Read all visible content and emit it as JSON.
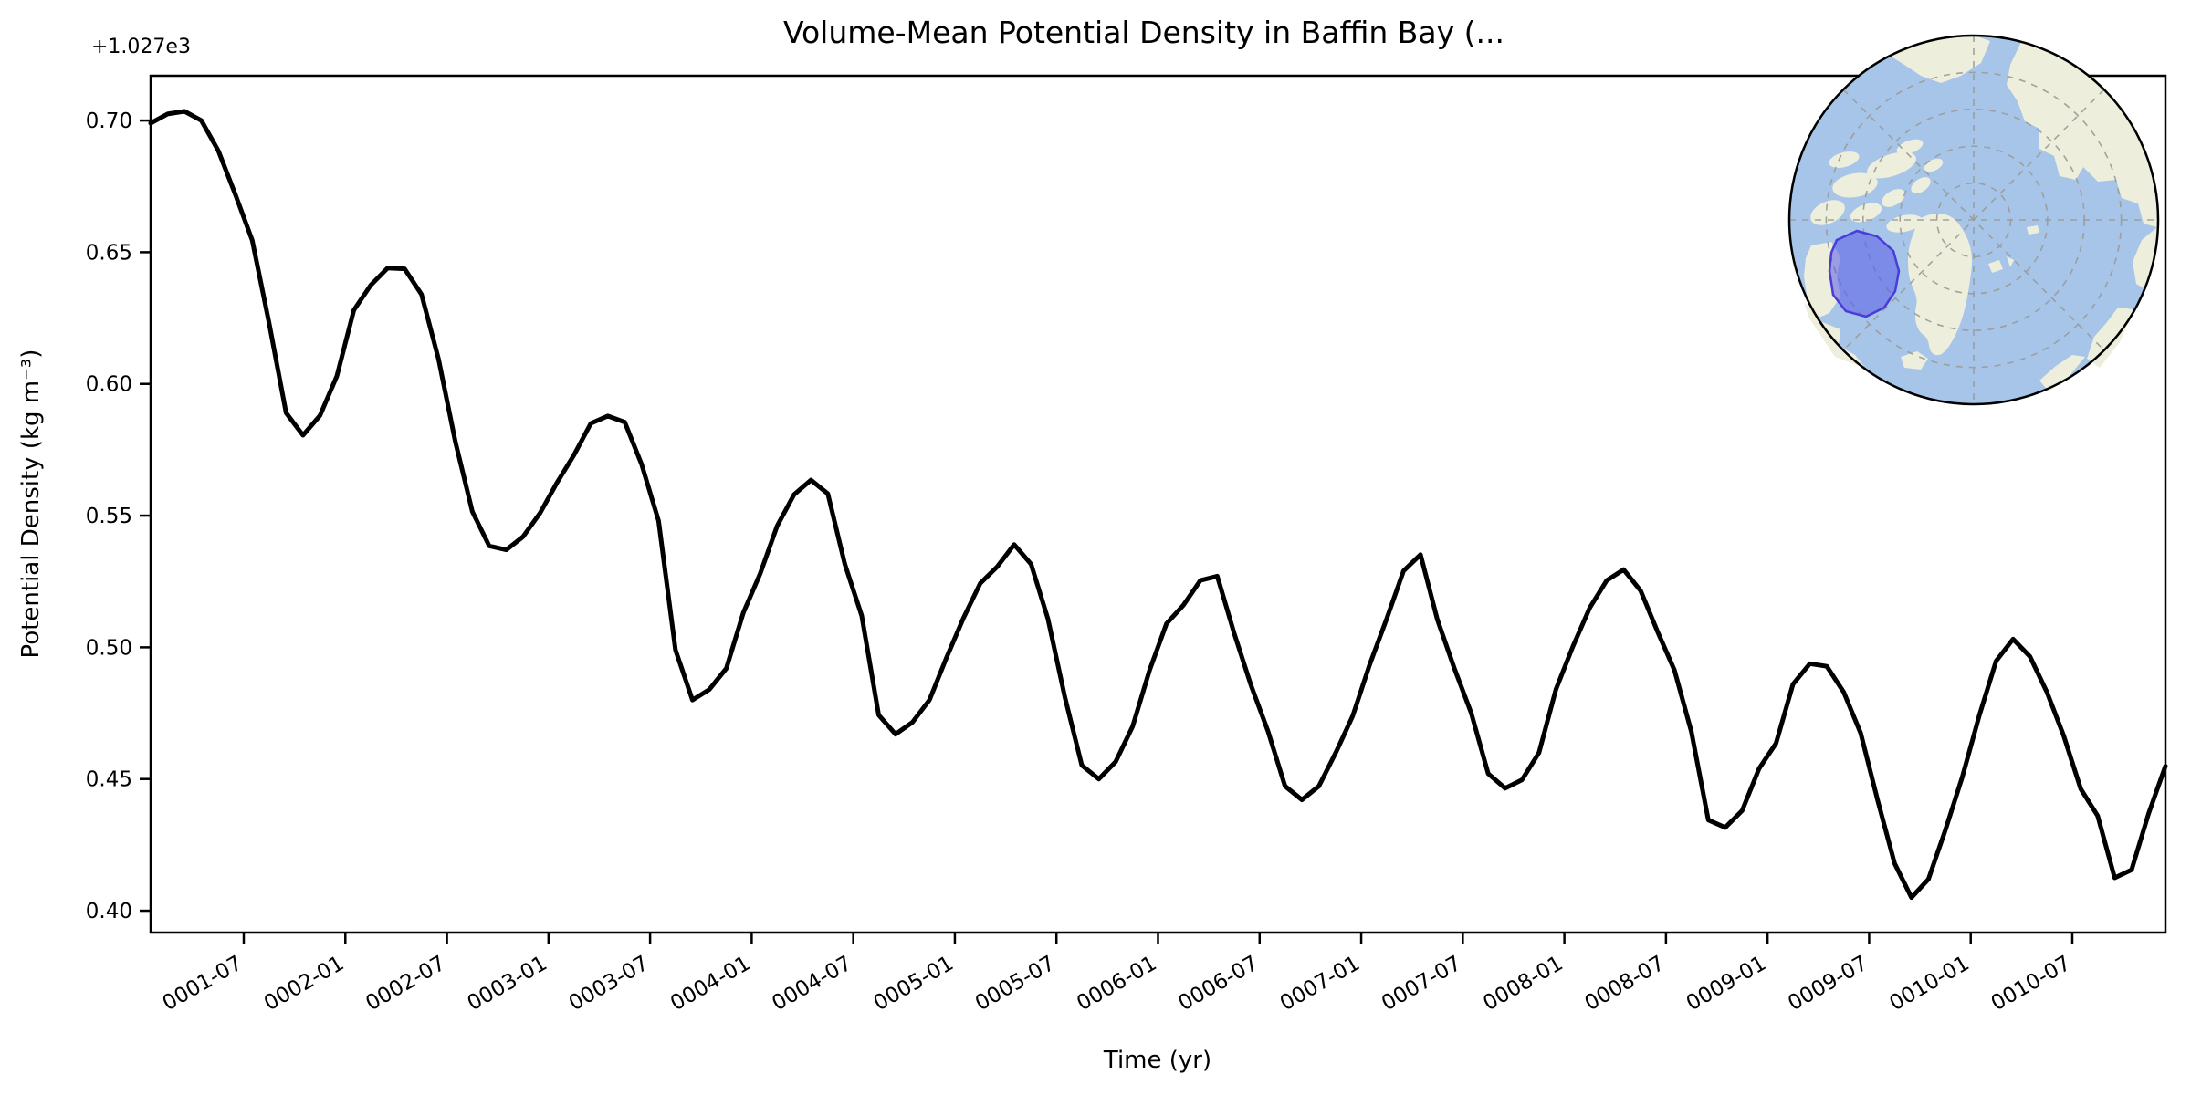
{
  "figure": {
    "title": "Volume-Mean Potential Density in Baffin Bay (...",
    "background_color": "#ffffff"
  },
  "chart_data": {
    "type": "line",
    "title": "Volume-Mean Potential Density in Baffin Bay (...",
    "xlabel": "Time (yr)",
    "ylabel": "Potential Density (kg m⁻³)",
    "y_axis_offset_label": "+1.027e3",
    "y_offset": 1027,
    "units": "kg m-3",
    "grid": false,
    "legend": "none",
    "line_color": "#000000",
    "line_width": 5,
    "ylim": [
      0.3917,
      0.717
    ],
    "y_ticks": [
      0.4,
      0.45,
      0.5,
      0.55,
      0.6,
      0.65,
      0.7
    ],
    "y_tick_labels": [
      "0.40",
      "0.45",
      "0.50",
      "0.55",
      "0.60",
      "0.65",
      "0.70"
    ],
    "x_tick_labels": [
      "0001-07",
      "0002-01",
      "0002-07",
      "0003-01",
      "0003-07",
      "0004-01",
      "0004-07",
      "0005-01",
      "0005-07",
      "0006-01",
      "0006-07",
      "0007-01",
      "0007-07",
      "0008-01",
      "0008-07",
      "0009-01",
      "0009-07",
      "0010-01",
      "0010-07"
    ],
    "x_start_month": "0001-01",
    "x_end_month": "0010-12",
    "frequency": "monthly",
    "values": [
      0.699,
      0.7025,
      0.7035,
      0.7,
      0.6885,
      0.672,
      0.6545,
      0.623,
      0.589,
      0.5805,
      0.588,
      0.603,
      0.628,
      0.6375,
      0.644,
      0.6437,
      0.634,
      0.6095,
      0.578,
      0.5515,
      0.5385,
      0.537,
      0.542,
      0.551,
      0.5625,
      0.573,
      0.585,
      0.5878,
      0.5855,
      0.5695,
      0.548,
      0.499,
      0.48,
      0.484,
      0.492,
      0.513,
      0.528,
      0.546,
      0.558,
      0.5635,
      0.5583,
      0.5316,
      0.512,
      0.4743,
      0.467,
      0.4716,
      0.48,
      0.496,
      0.511,
      0.5243,
      0.5306,
      0.539,
      0.5316,
      0.5108,
      0.481,
      0.4552,
      0.45,
      0.4566,
      0.47,
      0.4913,
      0.509,
      0.516,
      0.5254,
      0.527,
      0.5052,
      0.4854,
      0.468,
      0.4473,
      0.4421,
      0.4473,
      0.46,
      0.474,
      0.4934,
      0.5108,
      0.529,
      0.5352,
      0.5105,
      0.492,
      0.475,
      0.452,
      0.4465,
      0.4497,
      0.46,
      0.484,
      0.5003,
      0.515,
      0.5254,
      0.5295,
      0.5215,
      0.506,
      0.4913,
      0.468,
      0.4344,
      0.4316,
      0.438,
      0.454,
      0.4635,
      0.486,
      0.4938,
      0.4928,
      0.483,
      0.4674,
      0.442,
      0.418,
      0.405,
      0.412,
      0.4306,
      0.4507,
      0.474,
      0.4948,
      0.5031,
      0.4965,
      0.483,
      0.4663,
      0.4462,
      0.436,
      0.4125,
      0.4155,
      0.4368,
      0.4549
    ]
  },
  "inset_map": {
    "description": "North polar inset map with Baffin Bay study region highlighted",
    "ocean_color": "#a7c5e8",
    "land_color": "#eeeedd",
    "graticule_color": "#9a9a96",
    "border_color": "#000000",
    "coast_color": "#c9c9b8",
    "highlight_fill": "#5a5ae8",
    "highlight_stroke": "#4a3cd8",
    "highlight_fill_opacity": 0.55,
    "highlight_region": "baffin-bay"
  }
}
